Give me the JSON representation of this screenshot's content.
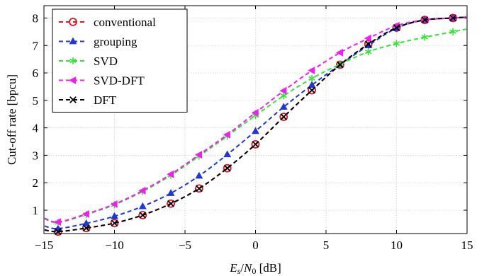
{
  "chart_data": {
    "type": "line",
    "title": "",
    "xlabel": "E_s/N_0 [dB]",
    "xlabel_parts": {
      "E": "E",
      "s": "s",
      "slash": "/",
      "N": "N",
      "zero": "0",
      "unit": " [dB]"
    },
    "ylabel": "Cut-off rate [bpcu]",
    "xlim": [
      -15,
      15
    ],
    "ylim": [
      0.15,
      8.45
    ],
    "xticks": [
      -15,
      -10,
      -5,
      0,
      5,
      10,
      15
    ],
    "xtick_labels": [
      "−15",
      "−10",
      "−5",
      "0",
      "5",
      "10",
      "15"
    ],
    "yticks": [
      1,
      2,
      3,
      4,
      5,
      6,
      7,
      8
    ],
    "ytick_labels": [
      "1",
      "2",
      "3",
      "4",
      "5",
      "6",
      "7",
      "8"
    ],
    "grid": true,
    "legend_position": "top-left",
    "x": [
      -14,
      -12,
      -10,
      -8,
      -6,
      -4,
      -2,
      0,
      2,
      4,
      6,
      8,
      10,
      12,
      14
    ],
    "series": [
      {
        "name": "conventional",
        "color": "#e8141e",
        "marker": "circle",
        "values": [
          0.22,
          0.35,
          0.53,
          0.82,
          1.24,
          1.79,
          2.53,
          3.4,
          4.4,
          5.37,
          6.3,
          7.05,
          7.65,
          7.93,
          8.0
        ]
      },
      {
        "name": "grouping",
        "color": "#1f37d8",
        "marker": "triangle-up",
        "values": [
          0.33,
          0.52,
          0.78,
          1.14,
          1.62,
          2.25,
          3.03,
          3.88,
          4.76,
          5.56,
          6.3,
          7.0,
          7.63,
          7.93,
          8.0
        ]
      },
      {
        "name": "SVD",
        "color": "#33e533",
        "marker": "asterisk",
        "values": [
          0.55,
          0.84,
          1.2,
          1.68,
          2.27,
          2.97,
          3.7,
          4.45,
          5.17,
          5.8,
          6.32,
          6.77,
          7.07,
          7.3,
          7.5
        ]
      },
      {
        "name": "SVD-DFT",
        "color": "#f01ef0",
        "marker": "triangle-left",
        "values": [
          0.57,
          0.86,
          1.22,
          1.71,
          2.31,
          3.02,
          3.75,
          4.55,
          5.35,
          6.09,
          6.74,
          7.26,
          7.72,
          7.93,
          8.0
        ]
      },
      {
        "name": "DFT",
        "color": "#000000",
        "marker": "cross",
        "values": [
          0.22,
          0.35,
          0.53,
          0.82,
          1.24,
          1.79,
          2.53,
          3.4,
          4.4,
          5.37,
          6.3,
          7.05,
          7.65,
          7.93,
          8.0
        ]
      }
    ]
  }
}
